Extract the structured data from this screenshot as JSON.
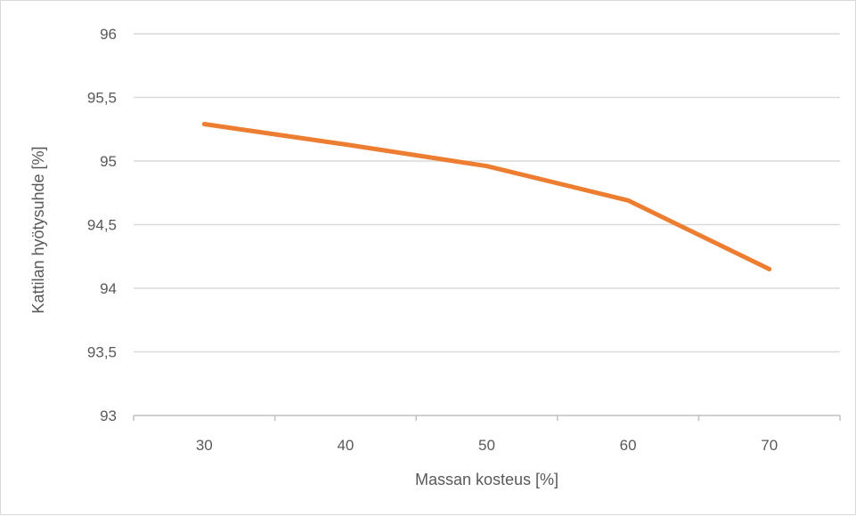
{
  "chart_data": {
    "type": "line",
    "title": "",
    "xlabel": "Massan kosteus [%]",
    "ylabel": "Kattilan hyötysuhde [%]",
    "categories": [
      "30",
      "40",
      "50",
      "60",
      "70"
    ],
    "series": [
      {
        "values": [
          95.29,
          95.13,
          94.96,
          94.69,
          94.15
        ],
        "color": "#ED7D31"
      }
    ],
    "y_ticks": [
      "93",
      "93,5",
      "94",
      "94,5",
      "95",
      "95,5",
      "96"
    ],
    "ylim": [
      93,
      96
    ],
    "y_step": 0.5,
    "grid": true,
    "gridline_color": "#d9d9d9",
    "axis_color": "#bfbfbf",
    "legend": "none"
  }
}
